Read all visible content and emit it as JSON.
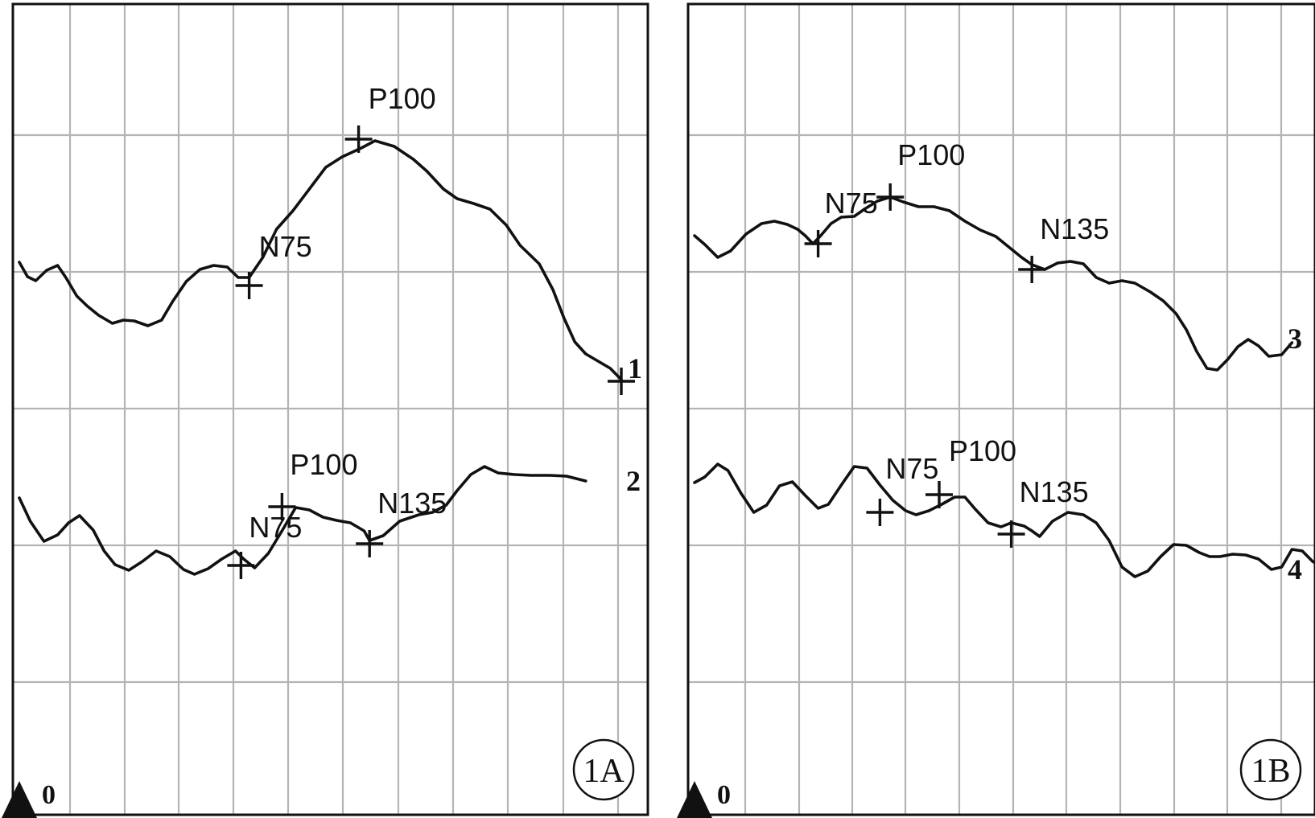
{
  "chart_data": [
    {
      "type": "line",
      "panel_label": "1A",
      "zero_label": "0",
      "grid": true,
      "series": [
        {
          "trace_label": "1",
          "points": [
            [
              0,
              326
            ],
            [
              3,
              344
            ],
            [
              6,
              349
            ],
            [
              10,
              336
            ],
            [
              14,
              330
            ],
            [
              17,
              345
            ],
            [
              21,
              368
            ],
            [
              25,
              381
            ],
            [
              29,
              392
            ],
            [
              34,
              402
            ],
            [
              38,
              398
            ],
            [
              42,
              399
            ],
            [
              47,
              405
            ],
            [
              52,
              398
            ],
            [
              56,
              375
            ],
            [
              61,
              350
            ],
            [
              66,
              335
            ],
            [
              71,
              330
            ],
            [
              76,
              332
            ],
            [
              80,
              345
            ],
            [
              84,
              345
            ],
            [
              89,
              320
            ],
            [
              94,
              285
            ],
            [
              100,
              262
            ],
            [
              106,
              235
            ],
            [
              112,
              208
            ],
            [
              118,
              195
            ],
            [
              125,
              184
            ],
            [
              130,
              175
            ],
            [
              137,
              182
            ],
            [
              144,
              198
            ],
            [
              149,
              213
            ],
            [
              155,
              235
            ],
            [
              160,
              247
            ],
            [
              166,
              253
            ],
            [
              172,
              260
            ],
            [
              178,
              280
            ],
            [
              183,
              305
            ],
            [
              190,
              328
            ],
            [
              195,
              360
            ],
            [
              199,
              395
            ],
            [
              203,
              425
            ],
            [
              207,
              440
            ],
            [
              212,
              450
            ],
            [
              216,
              458
            ],
            [
              220,
              472
            ]
          ],
          "peaks": [
            {
              "label": "N75",
              "t": 84,
              "y": 355
            },
            {
              "label": "P100",
              "t": 124,
              "y": 173
            },
            {
              "label": "",
              "t": 220,
              "y": 474
            }
          ]
        },
        {
          "trace_label": "2",
          "points": [
            [
              0,
              619
            ],
            [
              4,
              648
            ],
            [
              9,
              673
            ],
            [
              14,
              665
            ],
            [
              18,
              650
            ],
            [
              22,
              641
            ],
            [
              27,
              659
            ],
            [
              31,
              685
            ],
            [
              35,
              702
            ],
            [
              40,
              709
            ],
            [
              45,
              698
            ],
            [
              50,
              685
            ],
            [
              55,
              692
            ],
            [
              60,
              708
            ],
            [
              64,
              714
            ],
            [
              69,
              707
            ],
            [
              74,
              695
            ],
            [
              79,
              685
            ],
            [
              82,
              695
            ],
            [
              86,
              706
            ],
            [
              91,
              688
            ],
            [
              96,
              660
            ],
            [
              101,
              631
            ],
            [
              106,
              634
            ],
            [
              111,
              643
            ],
            [
              116,
              647
            ],
            [
              121,
              650
            ],
            [
              126,
              660
            ],
            [
              128,
              672
            ],
            [
              133,
              666
            ],
            [
              139,
              648
            ],
            [
              146,
              640
            ],
            [
              151,
              637
            ],
            [
              156,
              628
            ],
            [
              160,
              610
            ],
            [
              165,
              590
            ],
            [
              170,
              580
            ],
            [
              175,
              588
            ],
            [
              181,
              590
            ],
            [
              187,
              591
            ],
            [
              194,
              591
            ],
            [
              200,
              592
            ],
            [
              207,
              598
            ]
          ],
          "peaks": [
            {
              "label": "N75",
              "t": 81,
              "y": 703
            },
            {
              "label": "P100",
              "t": 96,
              "y": 630
            },
            {
              "label": "N135",
              "t": 128,
              "y": 676
            }
          ]
        }
      ]
    },
    {
      "type": "line",
      "panel_label": "1B",
      "zero_label": "0",
      "grid": true,
      "series": [
        {
          "trace_label": "3",
          "points": [
            [
              0,
              293
            ],
            [
              4,
              304
            ],
            [
              9,
              320
            ],
            [
              14,
              312
            ],
            [
              20,
              291
            ],
            [
              26,
              278
            ],
            [
              31,
              275
            ],
            [
              36,
              279
            ],
            [
              40,
              285
            ],
            [
              43,
              293
            ],
            [
              46,
              303
            ],
            [
              49,
              293
            ],
            [
              53,
              278
            ],
            [
              57,
              270
            ],
            [
              62,
              269
            ],
            [
              66,
              260
            ],
            [
              71,
              250
            ],
            [
              76,
              245
            ],
            [
              81,
              251
            ],
            [
              87,
              257
            ],
            [
              93,
              257
            ],
            [
              99,
              262
            ],
            [
              105,
              275
            ],
            [
              111,
              286
            ],
            [
              117,
              294
            ],
            [
              122,
              307
            ],
            [
              127,
              320
            ],
            [
              131,
              329
            ],
            [
              136,
              335
            ],
            [
              141,
              327
            ],
            [
              146,
              325
            ],
            [
              151,
              328
            ],
            [
              156,
              345
            ],
            [
              161,
              352
            ],
            [
              166,
              349
            ],
            [
              171,
              352
            ],
            [
              177,
              363
            ],
            [
              182,
              374
            ],
            [
              187,
              390
            ],
            [
              191,
              410
            ],
            [
              195,
              437
            ],
            [
              199,
              458
            ],
            [
              203,
              460
            ],
            [
              207,
              447
            ],
            [
              211,
              431
            ],
            [
              215,
              422
            ],
            [
              219,
              430
            ],
            [
              223,
              443
            ],
            [
              228,
              441
            ],
            [
              232,
              426
            ]
          ],
          "peaks": [
            {
              "label": "N75",
              "t": 48,
              "y": 303
            },
            {
              "label": "P100",
              "t": 76,
              "y": 245
            },
            {
              "label": "N135",
              "t": 131,
              "y": 335
            }
          ]
        },
        {
          "trace_label": "4",
          "points": [
            [
              0,
              600
            ],
            [
              4,
              593
            ],
            [
              9,
              577
            ],
            [
              13,
              585
            ],
            [
              18,
              613
            ],
            [
              23,
              637
            ],
            [
              28,
              628
            ],
            [
              33,
              604
            ],
            [
              38,
              599
            ],
            [
              43,
              616
            ],
            [
              48,
              632
            ],
            [
              52,
              627
            ],
            [
              57,
              603
            ],
            [
              62,
              580
            ],
            [
              67,
              582
            ],
            [
              72,
              603
            ],
            [
              77,
              622
            ],
            [
              82,
              635
            ],
            [
              86,
              640
            ],
            [
              91,
              635
            ],
            [
              96,
              627
            ],
            [
              101,
              618
            ],
            [
              105,
              618
            ],
            [
              109,
              633
            ],
            [
              114,
              650
            ],
            [
              119,
              655
            ],
            [
              123,
              650
            ],
            [
              128,
              654
            ],
            [
              131,
              660
            ],
            [
              134,
              667
            ],
            [
              139,
              648
            ],
            [
              145,
              637
            ],
            [
              151,
              640
            ],
            [
              156,
              650
            ],
            [
              161,
              672
            ],
            [
              166,
              705
            ],
            [
              171,
              717
            ],
            [
              176,
              710
            ],
            [
              181,
              692
            ],
            [
              186,
              677
            ],
            [
              191,
              678
            ],
            [
              196,
              687
            ],
            [
              200,
              692
            ],
            [
              204,
              692
            ],
            [
              209,
              689
            ],
            [
              214,
              690
            ],
            [
              219,
              695
            ],
            [
              224,
              708
            ],
            [
              228,
              705
            ],
            [
              232,
              683
            ],
            [
              236,
              685
            ],
            [
              240,
              698
            ],
            [
              244,
              705
            ]
          ],
          "peaks": [
            {
              "label": "N75",
              "t": 72,
              "y": 637
            },
            {
              "label": "P100",
              "t": 95,
              "y": 615
            },
            {
              "label": "N135",
              "t": 123,
              "y": 664
            }
          ]
        }
      ]
    }
  ]
}
